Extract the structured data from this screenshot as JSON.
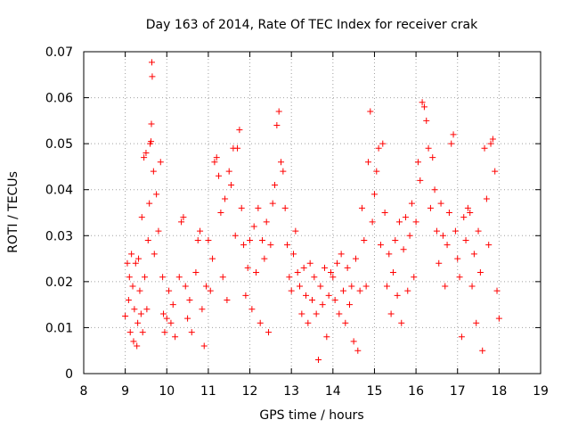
{
  "chart_data": {
    "type": "scatter",
    "title": "Day 163 of 2014, Rate Of TEC Index for receiver crak",
    "xlabel": "GPS time / hours",
    "ylabel": "ROTI / TECUs",
    "xlim": [
      8,
      19
    ],
    "ylim": [
      0,
      0.07
    ],
    "x_ticks": [
      8,
      9,
      10,
      11,
      12,
      13,
      14,
      15,
      16,
      17,
      18,
      19
    ],
    "y_ticks": [
      0,
      0.01,
      0.02,
      0.03,
      0.04,
      0.05,
      0.06,
      0.07
    ],
    "x_tick_labels": [
      "8",
      "9",
      "10",
      "11",
      "12",
      "13",
      "14",
      "15",
      "16",
      "17",
      "18",
      "19"
    ],
    "y_tick_labels": [
      "0",
      "0.01",
      "0.02",
      "0.03",
      "0.04",
      "0.05",
      "0.06",
      "0.07"
    ],
    "grid": true,
    "marker": "+",
    "color": "#ff0000",
    "series": [
      {
        "name": "ROTI",
        "points": [
          [
            9.0,
            0.0125
          ],
          [
            9.05,
            0.024
          ],
          [
            9.08,
            0.016
          ],
          [
            9.1,
            0.021
          ],
          [
            9.12,
            0.009
          ],
          [
            9.15,
            0.026
          ],
          [
            9.18,
            0.019
          ],
          [
            9.2,
            0.007
          ],
          [
            9.22,
            0.014
          ],
          [
            9.25,
            0.024
          ],
          [
            9.28,
            0.006
          ],
          [
            9.3,
            0.011
          ],
          [
            9.32,
            0.025
          ],
          [
            9.35,
            0.018
          ],
          [
            9.38,
            0.013
          ],
          [
            9.4,
            0.034
          ],
          [
            9.42,
            0.009
          ],
          [
            9.45,
            0.047
          ],
          [
            9.47,
            0.021
          ],
          [
            9.5,
            0.048
          ],
          [
            9.52,
            0.014
          ],
          [
            9.55,
            0.029
          ],
          [
            9.58,
            0.037
          ],
          [
            9.6,
            0.05
          ],
          [
            9.62,
            0.0505
          ],
          [
            9.63,
            0.0543
          ],
          [
            9.64,
            0.0677
          ],
          [
            9.65,
            0.0646
          ],
          [
            9.68,
            0.044
          ],
          [
            9.7,
            0.026
          ],
          [
            9.75,
            0.039
          ],
          [
            9.8,
            0.031
          ],
          [
            9.85,
            0.046
          ],
          [
            9.9,
            0.021
          ],
          [
            9.92,
            0.013
          ],
          [
            9.95,
            0.009
          ],
          [
            10.0,
            0.012
          ],
          [
            10.05,
            0.018
          ],
          [
            10.1,
            0.011
          ],
          [
            10.15,
            0.015
          ],
          [
            10.2,
            0.008
          ],
          [
            10.3,
            0.021
          ],
          [
            10.35,
            0.033
          ],
          [
            10.4,
            0.034
          ],
          [
            10.45,
            0.019
          ],
          [
            10.5,
            0.012
          ],
          [
            10.55,
            0.016
          ],
          [
            10.6,
            0.009
          ],
          [
            10.7,
            0.022
          ],
          [
            10.75,
            0.029
          ],
          [
            10.8,
            0.031
          ],
          [
            10.85,
            0.014
          ],
          [
            10.9,
            0.006
          ],
          [
            10.95,
            0.019
          ],
          [
            11.0,
            0.029
          ],
          [
            11.05,
            0.018
          ],
          [
            11.1,
            0.025
          ],
          [
            11.15,
            0.046
          ],
          [
            11.2,
            0.047
          ],
          [
            11.25,
            0.043
          ],
          [
            11.3,
            0.035
          ],
          [
            11.35,
            0.021
          ],
          [
            11.4,
            0.038
          ],
          [
            11.45,
            0.016
          ],
          [
            11.5,
            0.044
          ],
          [
            11.55,
            0.041
          ],
          [
            11.6,
            0.049
          ],
          [
            11.65,
            0.03
          ],
          [
            11.7,
            0.049
          ],
          [
            11.75,
            0.053
          ],
          [
            11.8,
            0.036
          ],
          [
            11.85,
            0.028
          ],
          [
            11.9,
            0.017
          ],
          [
            11.95,
            0.023
          ],
          [
            12.0,
            0.029
          ],
          [
            12.05,
            0.014
          ],
          [
            12.1,
            0.032
          ],
          [
            12.15,
            0.022
          ],
          [
            12.2,
            0.036
          ],
          [
            12.25,
            0.011
          ],
          [
            12.3,
            0.029
          ],
          [
            12.35,
            0.025
          ],
          [
            12.4,
            0.033
          ],
          [
            12.45,
            0.009
          ],
          [
            12.5,
            0.028
          ],
          [
            12.55,
            0.037
          ],
          [
            12.6,
            0.041
          ],
          [
            12.65,
            0.054
          ],
          [
            12.7,
            0.057
          ],
          [
            12.75,
            0.046
          ],
          [
            12.8,
            0.044
          ],
          [
            12.85,
            0.036
          ],
          [
            12.9,
            0.028
          ],
          [
            12.95,
            0.021
          ],
          [
            13.0,
            0.018
          ],
          [
            13.05,
            0.026
          ],
          [
            13.1,
            0.031
          ],
          [
            13.15,
            0.022
          ],
          [
            13.2,
            0.019
          ],
          [
            13.25,
            0.013
          ],
          [
            13.3,
            0.023
          ],
          [
            13.35,
            0.017
          ],
          [
            13.4,
            0.011
          ],
          [
            13.45,
            0.024
          ],
          [
            13.5,
            0.016
          ],
          [
            13.55,
            0.021
          ],
          [
            13.6,
            0.013
          ],
          [
            13.65,
            0.003
          ],
          [
            13.7,
            0.019
          ],
          [
            13.75,
            0.015
          ],
          [
            13.8,
            0.023
          ],
          [
            13.85,
            0.008
          ],
          [
            13.9,
            0.017
          ],
          [
            13.95,
            0.022
          ],
          [
            14.0,
            0.021
          ],
          [
            14.05,
            0.016
          ],
          [
            14.1,
            0.024
          ],
          [
            14.15,
            0.013
          ],
          [
            14.2,
            0.026
          ],
          [
            14.25,
            0.018
          ],
          [
            14.3,
            0.011
          ],
          [
            14.35,
            0.023
          ],
          [
            14.4,
            0.015
          ],
          [
            14.45,
            0.019
          ],
          [
            14.5,
            0.007
          ],
          [
            14.55,
            0.025
          ],
          [
            14.6,
            0.005
          ],
          [
            14.65,
            0.018
          ],
          [
            14.7,
            0.036
          ],
          [
            14.75,
            0.029
          ],
          [
            14.8,
            0.019
          ],
          [
            14.85,
            0.046
          ],
          [
            14.9,
            0.057
          ],
          [
            14.95,
            0.033
          ],
          [
            15.0,
            0.039
          ],
          [
            15.05,
            0.044
          ],
          [
            15.1,
            0.049
          ],
          [
            15.15,
            0.028
          ],
          [
            15.2,
            0.05
          ],
          [
            15.25,
            0.035
          ],
          [
            15.3,
            0.019
          ],
          [
            15.35,
            0.026
          ],
          [
            15.4,
            0.013
          ],
          [
            15.45,
            0.022
          ],
          [
            15.5,
            0.029
          ],
          [
            15.55,
            0.017
          ],
          [
            15.6,
            0.033
          ],
          [
            15.65,
            0.011
          ],
          [
            15.7,
            0.027
          ],
          [
            15.75,
            0.034
          ],
          [
            15.8,
            0.018
          ],
          [
            15.85,
            0.03
          ],
          [
            15.9,
            0.037
          ],
          [
            15.95,
            0.021
          ],
          [
            16.0,
            0.033
          ],
          [
            16.05,
            0.046
          ],
          [
            16.1,
            0.042
          ],
          [
            16.15,
            0.059
          ],
          [
            16.2,
            0.058
          ],
          [
            16.25,
            0.055
          ],
          [
            16.3,
            0.049
          ],
          [
            16.35,
            0.036
          ],
          [
            16.4,
            0.047
          ],
          [
            16.45,
            0.04
          ],
          [
            16.5,
            0.031
          ],
          [
            16.55,
            0.024
          ],
          [
            16.6,
            0.037
          ],
          [
            16.65,
            0.03
          ],
          [
            16.7,
            0.019
          ],
          [
            16.75,
            0.028
          ],
          [
            16.8,
            0.035
          ],
          [
            16.85,
            0.05
          ],
          [
            16.9,
            0.052
          ],
          [
            16.95,
            0.031
          ],
          [
            17.0,
            0.025
          ],
          [
            17.05,
            0.021
          ],
          [
            17.1,
            0.008
          ],
          [
            17.15,
            0.034
          ],
          [
            17.2,
            0.029
          ],
          [
            17.25,
            0.036
          ],
          [
            17.3,
            0.035
          ],
          [
            17.35,
            0.019
          ],
          [
            17.4,
            0.026
          ],
          [
            17.45,
            0.011
          ],
          [
            17.5,
            0.031
          ],
          [
            17.55,
            0.022
          ],
          [
            17.6,
            0.005
          ],
          [
            17.65,
            0.049
          ],
          [
            17.7,
            0.038
          ],
          [
            17.75,
            0.028
          ],
          [
            17.8,
            0.05
          ],
          [
            17.85,
            0.051
          ],
          [
            17.9,
            0.044
          ],
          [
            17.95,
            0.018
          ],
          [
            18.0,
            0.012
          ]
        ]
      }
    ]
  }
}
